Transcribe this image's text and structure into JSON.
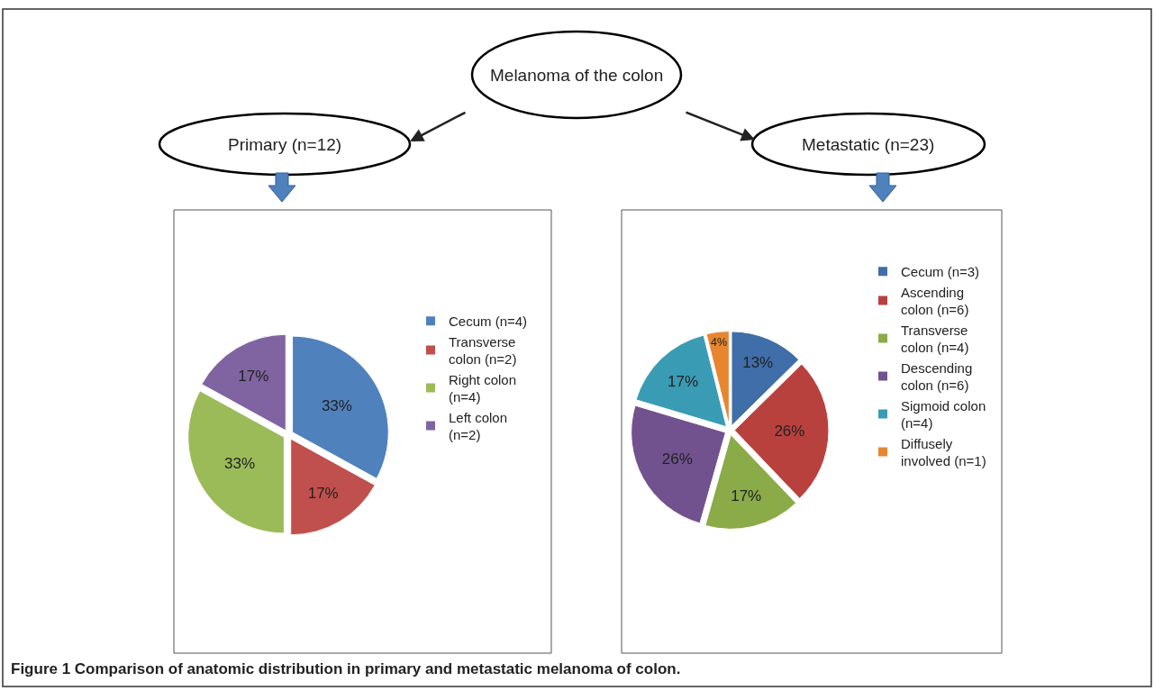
{
  "chart_data": [
    {
      "type": "other",
      "title": "Melanoma of the colon",
      "annotations": [
        "Figure 1 Comparison of anatomic distribution in primary and metastatic melanoma of colon."
      ]
    },
    {
      "type": "pie",
      "title": "Primary (n=12)",
      "categories": [
        "Cecum (n=4)",
        "Transverse colon (n=2)",
        "Right colon (n=4)",
        "Left colon (n=2)"
      ],
      "values": [
        33,
        17,
        33,
        17
      ],
      "value_labels": [
        "33%",
        "17%",
        "33%",
        "17%"
      ],
      "colors": [
        "#4f81bd",
        "#c0504d",
        "#9bbb59",
        "#8064a2"
      ],
      "legend": "right"
    },
    {
      "type": "pie",
      "title": "Metastatic (n=23)",
      "categories": [
        "Cecum (n=3)",
        "Ascending colon (n=6)",
        "Transverse colon (n=4)",
        "Descending colon (n=6)",
        "Sigmoid colon (n=4)",
        "Diffusely involved (n=1)"
      ],
      "values": [
        13,
        26,
        17,
        26,
        17,
        4
      ],
      "value_labels": [
        "13%",
        "26%",
        "17%",
        "26%",
        "17%",
        "4%"
      ],
      "colors": [
        "#3f6ea8",
        "#b8413e",
        "#8aab47",
        "#71528f",
        "#3a9bb5",
        "#e8862f"
      ],
      "legend": "right"
    }
  ]
}
